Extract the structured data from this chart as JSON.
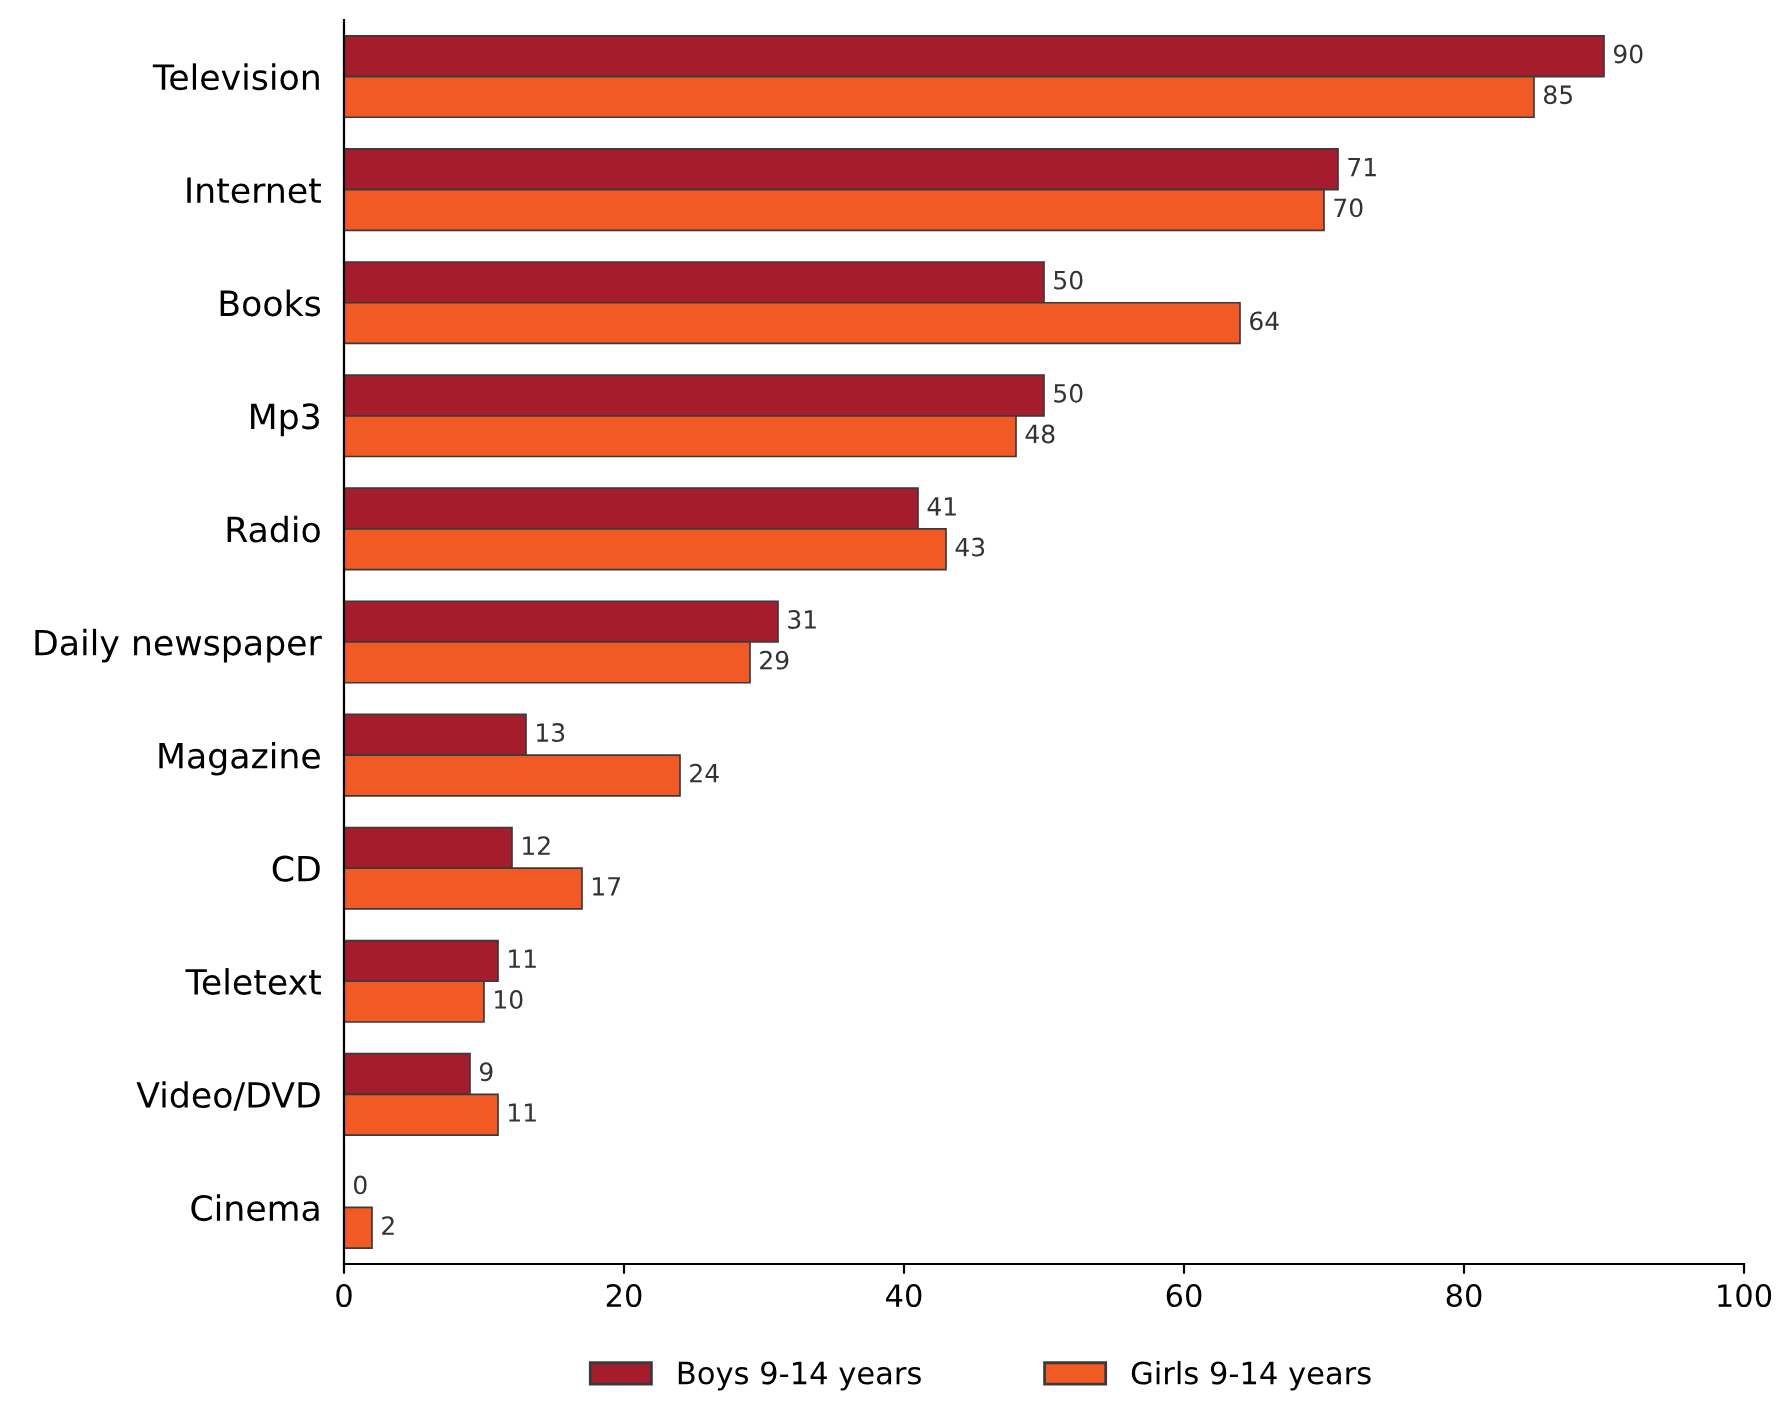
{
  "chart_data": {
    "type": "bar",
    "orientation": "horizontal",
    "categories": [
      "Television",
      "Internet",
      "Books",
      "Mp3",
      "Radio",
      "Daily newspaper",
      "Magazine",
      "CD",
      "Teletext",
      "Video/DVD",
      "Cinema"
    ],
    "series": [
      {
        "name": "Boys 9-14 years",
        "color": "#a51d2d",
        "values": [
          90,
          71,
          50,
          50,
          41,
          31,
          13,
          12,
          11,
          9,
          0
        ]
      },
      {
        "name": "Girls 9-14 years",
        "color": "#f15a24",
        "values": [
          85,
          70,
          64,
          48,
          43,
          29,
          24,
          17,
          10,
          11,
          2
        ]
      }
    ],
    "xlim": [
      0,
      100
    ],
    "xticks": [
      0,
      20,
      40,
      60,
      80,
      100
    ],
    "grid": false,
    "legend": "bottom",
    "data_labels": true
  }
}
